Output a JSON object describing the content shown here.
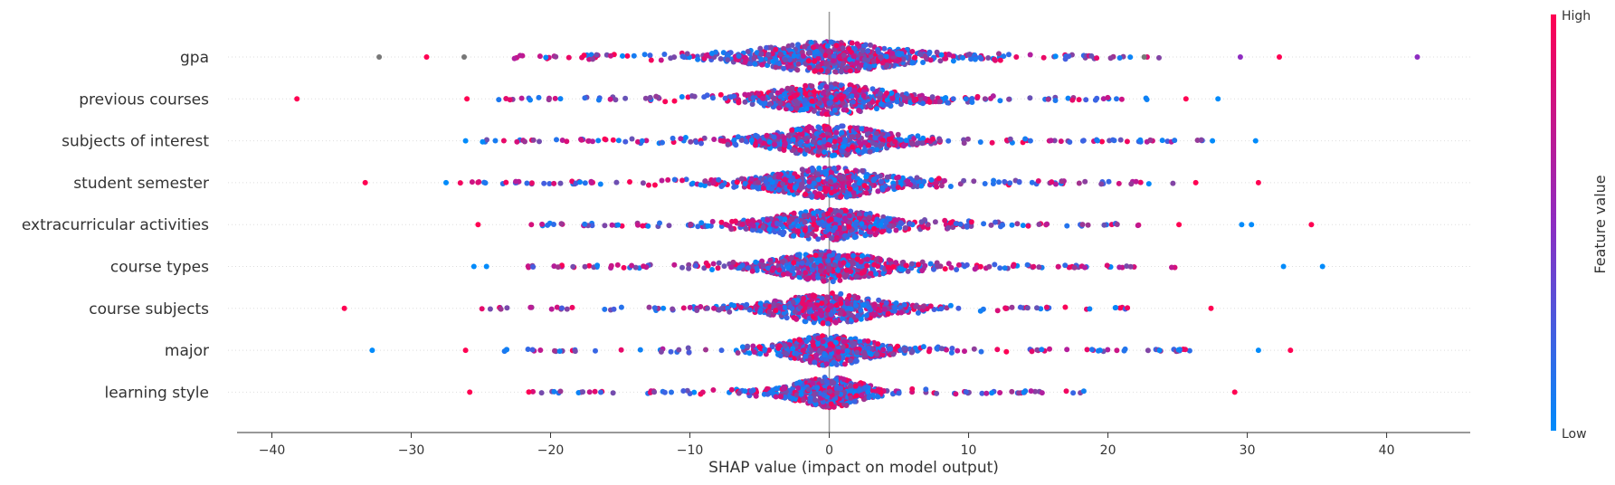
{
  "chart_data": {
    "type": "scatter",
    "subtype": "shap-beeswarm",
    "title": "",
    "xlabel": "SHAP value (impact on model output)",
    "xlim": [
      -42.5,
      46
    ],
    "xticks": [
      -40,
      -30,
      -20,
      -10,
      0,
      10,
      20,
      30,
      40
    ],
    "zero_line": true,
    "grid": false,
    "colors": {
      "low": "#008bfb",
      "high": "#ff0052",
      "mid": "#8e2cc1",
      "grey": "#777777"
    },
    "colorbar": {
      "high_label": "High",
      "low_label": "Low",
      "title": "Feature value",
      "placement": "right"
    },
    "features": [
      {
        "name": "gpa",
        "spread": 10,
        "tail_min": -23,
        "tail_max": 24,
        "density": 1.15,
        "outliers": [
          [
            -32.3,
            "grey"
          ],
          [
            -28.9,
            "high"
          ],
          [
            -26.2,
            "grey"
          ],
          [
            22.6,
            "grey"
          ],
          [
            29.5,
            "mid"
          ],
          [
            32.3,
            "high"
          ],
          [
            42.2,
            "mid"
          ]
        ]
      },
      {
        "name": "previous courses",
        "spread": 8,
        "tail_min": -24,
        "tail_max": 24,
        "density": 1.0,
        "outliers": [
          [
            -38.2,
            "high"
          ],
          [
            -26.0,
            "high"
          ],
          [
            25.6,
            "high"
          ],
          [
            27.9,
            "low"
          ]
        ]
      },
      {
        "name": "subjects of interest",
        "spread": 8,
        "tail_min": -25,
        "tail_max": 27,
        "density": 1.0,
        "outliers": [
          [
            -26.1,
            "low"
          ],
          [
            27.5,
            "low"
          ],
          [
            30.6,
            "low"
          ]
        ]
      },
      {
        "name": "student semester",
        "spread": 8,
        "tail_min": -27,
        "tail_max": 25,
        "density": 1.0,
        "outliers": [
          [
            -33.3,
            "high"
          ],
          [
            -27.5,
            "low"
          ],
          [
            26.3,
            "high"
          ],
          [
            30.8,
            "high"
          ]
        ]
      },
      {
        "name": "extracurricular activities",
        "spread": 8,
        "tail_min": -22,
        "tail_max": 23,
        "density": 1.0,
        "outliers": [
          [
            -25.2,
            "high"
          ],
          [
            25.1,
            "high"
          ],
          [
            29.6,
            "low"
          ],
          [
            30.3,
            "low"
          ],
          [
            34.6,
            "high"
          ]
        ]
      },
      {
        "name": "course types",
        "spread": 7,
        "tail_min": -22,
        "tail_max": 25,
        "density": 1.0,
        "outliers": [
          [
            -25.5,
            "low"
          ],
          [
            -24.6,
            "low"
          ],
          [
            32.6,
            "low"
          ],
          [
            35.4,
            "low"
          ]
        ]
      },
      {
        "name": "course subjects",
        "spread": 7,
        "tail_min": -25,
        "tail_max": 22,
        "density": 0.95,
        "outliers": [
          [
            -34.8,
            "high"
          ],
          [
            27.4,
            "high"
          ]
        ]
      },
      {
        "name": "major",
        "spread": 6,
        "tail_min": -24,
        "tail_max": 26,
        "density": 0.9,
        "outliers": [
          [
            -32.8,
            "low"
          ],
          [
            -26.1,
            "high"
          ],
          [
            30.8,
            "low"
          ],
          [
            33.1,
            "high"
          ]
        ]
      },
      {
        "name": "learning style",
        "spread": 5,
        "tail_min": -23,
        "tail_max": 19,
        "density": 0.8,
        "outliers": [
          [
            -25.8,
            "high"
          ],
          [
            29.1,
            "high"
          ]
        ]
      }
    ]
  }
}
